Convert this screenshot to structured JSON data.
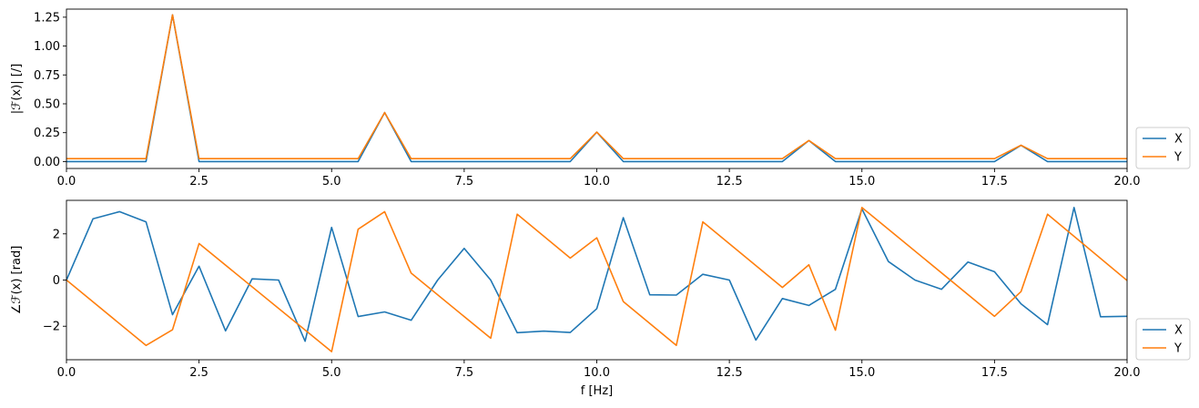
{
  "chart_data": [
    {
      "type": "line",
      "ylabel": "|ℱ(x)| [/]",
      "xlabel": "",
      "xlim": [
        0,
        20
      ],
      "ylim": [
        -0.06,
        1.32
      ],
      "x_ticks": [
        0,
        2.5,
        5,
        7.5,
        10,
        12.5,
        15,
        17.5,
        20
      ],
      "x_tick_labels": [
        "0.0",
        "2.5",
        "5.0",
        "7.5",
        "10.0",
        "12.5",
        "15.0",
        "17.5",
        "20.0"
      ],
      "y_ticks": [
        0,
        0.25,
        0.5,
        0.75,
        1.0,
        1.25
      ],
      "y_tick_labels": [
        "0.00",
        "0.25",
        "0.50",
        "0.75",
        "1.00",
        "1.25"
      ],
      "grid": false,
      "legend": "outside-bottom-right",
      "series": [
        {
          "name": "X",
          "color": "#1f77b4",
          "x": [
            0,
            0.5,
            1,
            1.5,
            2,
            2.5,
            3,
            3.5,
            4,
            4.5,
            5,
            5.5,
            6,
            6.5,
            7,
            7.5,
            8,
            8.5,
            9,
            9.5,
            10,
            10.5,
            11,
            11.5,
            12,
            12.5,
            13,
            13.5,
            14,
            14.5,
            15,
            15.5,
            16,
            16.5,
            17,
            17.5,
            18,
            18.5,
            19,
            19.5,
            20
          ],
          "values": [
            0,
            0,
            0,
            0,
            1.27,
            0,
            0,
            0,
            0,
            0,
            0,
            0,
            0.424,
            0,
            0,
            0,
            0,
            0,
            0,
            0,
            0.255,
            0,
            0,
            0,
            0,
            0,
            0,
            0,
            0.182,
            0,
            0,
            0,
            0,
            0,
            0,
            0,
            0.141,
            0,
            0,
            0,
            0
          ]
        },
        {
          "name": "Y",
          "color": "#ff7f0e",
          "x": [
            0,
            0.5,
            1,
            1.5,
            2,
            2.5,
            3,
            3.5,
            4,
            4.5,
            5,
            5.5,
            6,
            6.5,
            7,
            7.5,
            8,
            8.5,
            9,
            9.5,
            10,
            10.5,
            11,
            11.5,
            12,
            12.5,
            13,
            13.5,
            14,
            14.5,
            15,
            15.5,
            16,
            16.5,
            17,
            17.5,
            18,
            18.5,
            19,
            19.5,
            20
          ],
          "values": [
            0.025,
            0.025,
            0.025,
            0.025,
            1.27,
            0.025,
            0.025,
            0.025,
            0.025,
            0.025,
            0.025,
            0.025,
            0.424,
            0.025,
            0.025,
            0.025,
            0.025,
            0.025,
            0.025,
            0.025,
            0.255,
            0.025,
            0.025,
            0.025,
            0.025,
            0.025,
            0.025,
            0.025,
            0.182,
            0.025,
            0.025,
            0.025,
            0.025,
            0.025,
            0.025,
            0.025,
            0.141,
            0.025,
            0.025,
            0.025,
            0.025
          ]
        }
      ]
    },
    {
      "type": "line",
      "ylabel": "∠ℱ(x) [rad]",
      "xlabel": "f [Hz]",
      "xlim": [
        0,
        20
      ],
      "ylim": [
        -3.45,
        3.45
      ],
      "x_ticks": [
        0,
        2.5,
        5,
        7.5,
        10,
        12.5,
        15,
        17.5,
        20
      ],
      "x_tick_labels": [
        "0.0",
        "2.5",
        "5.0",
        "7.5",
        "10.0",
        "12.5",
        "15.0",
        "17.5",
        "20.0"
      ],
      "y_ticks": [
        -2,
        0,
        2
      ],
      "y_tick_labels": [
        "−2",
        "0",
        "2"
      ],
      "grid": false,
      "legend": "outside-bottom-right",
      "series": [
        {
          "name": "X",
          "color": "#1f77b4",
          "x": [
            0,
            0.5,
            1,
            1.5,
            2,
            2.5,
            3,
            3.5,
            4,
            4.5,
            5,
            5.5,
            6,
            6.5,
            7,
            7.5,
            8,
            8.5,
            9,
            9.5,
            10,
            10.5,
            11,
            11.5,
            12,
            12.5,
            13,
            13.5,
            14,
            14.5,
            15,
            15.5,
            16,
            16.5,
            17,
            17.5,
            18,
            18.5,
            19,
            19.5,
            20
          ],
          "values": [
            0,
            2.65,
            2.96,
            2.52,
            -1.5,
            0.6,
            -2.2,
            0.05,
            0,
            -2.65,
            2.28,
            -1.58,
            -1.38,
            -1.74,
            0,
            1.37,
            0,
            -2.28,
            -2.21,
            -2.27,
            -1.24,
            2.7,
            -0.64,
            -0.65,
            0.25,
            0,
            -2.6,
            -0.8,
            -1.1,
            -0.4,
            3.08,
            0.8,
            0,
            -0.4,
            0.78,
            0.36,
            -1.03,
            -1.93,
            3.14,
            -1.59,
            -1.57
          ]
        },
        {
          "name": "Y",
          "color": "#ff7f0e",
          "x": [
            0,
            1.5,
            2,
            2.5,
            5,
            5.5,
            6,
            6.5,
            8,
            8.5,
            9.5,
            10,
            10.5,
            11.5,
            12,
            13.5,
            14,
            14.5,
            15,
            17.5,
            18,
            18.5,
            20
          ],
          "values": [
            0,
            -2.83,
            -2.15,
            1.58,
            -3.1,
            2.2,
            2.96,
            0.3,
            -2.52,
            2.85,
            0.95,
            1.83,
            -0.93,
            -2.83,
            2.52,
            -0.32,
            0.66,
            -2.17,
            3.14,
            -1.57,
            -0.5,
            2.85,
            -0.02
          ]
        }
      ]
    }
  ]
}
